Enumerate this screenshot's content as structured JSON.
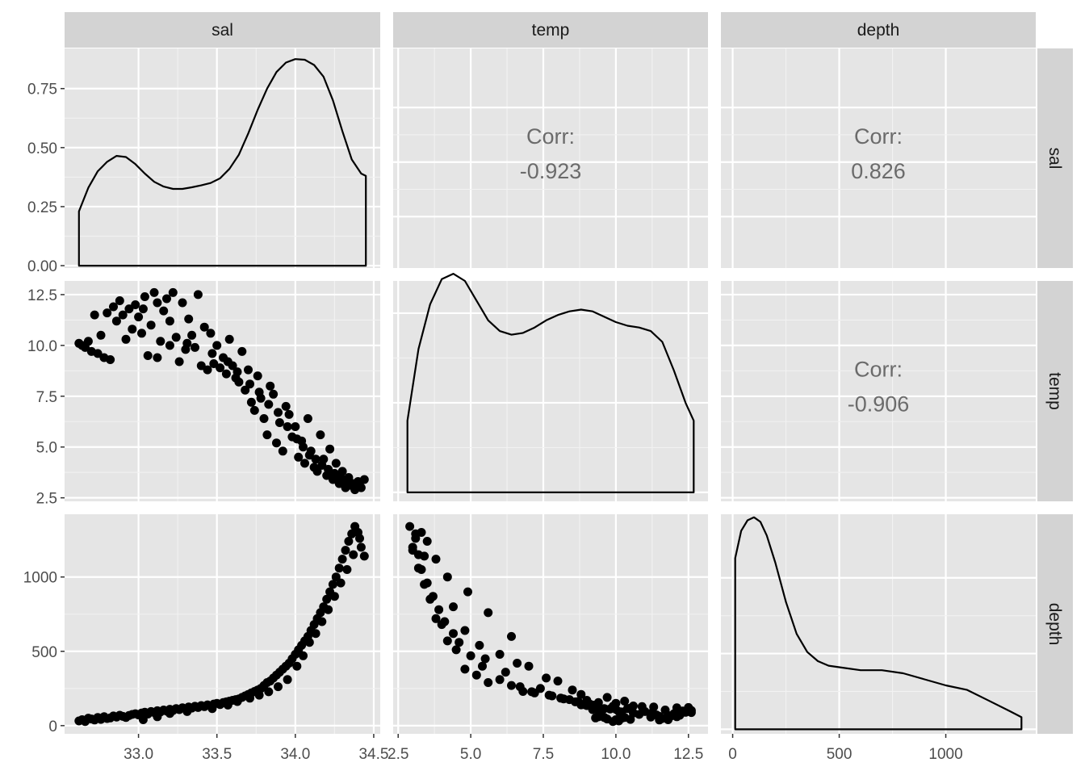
{
  "chart_data": {
    "type": "scatter",
    "variables": [
      "sal",
      "temp",
      "depth"
    ],
    "ranges": {
      "sal": [
        32.62,
        34.45
      ],
      "temp": [
        2.82,
        12.68
      ],
      "depth": [
        12,
        1355
      ]
    },
    "ticks": {
      "sal_y": [
        {
          "v": 0.0,
          "label": "0.00"
        },
        {
          "v": 0.25,
          "label": "0.25"
        },
        {
          "v": 0.5,
          "label": "0.50"
        },
        {
          "v": 0.75,
          "label": "0.75"
        }
      ],
      "temp_y": [
        {
          "v": 2.5,
          "label": "2.5"
        },
        {
          "v": 5.0,
          "label": "5.0"
        },
        {
          "v": 7.5,
          "label": "7.5"
        },
        {
          "v": 10.0,
          "label": "10.0"
        },
        {
          "v": 12.5,
          "label": "12.5"
        }
      ],
      "depth_y": [
        {
          "v": 0,
          "label": "0"
        },
        {
          "v": 500,
          "label": "500"
        },
        {
          "v": 1000,
          "label": "1000"
        }
      ],
      "sal_x": [
        {
          "v": 33.0,
          "label": "33.0"
        },
        {
          "v": 33.5,
          "label": "33.5"
        },
        {
          "v": 34.0,
          "label": "34.0"
        },
        {
          "v": 34.5,
          "label": "34.5"
        }
      ],
      "temp_x": [
        {
          "v": 2.5,
          "label": "2.5"
        },
        {
          "v": 5.0,
          "label": "5.0"
        },
        {
          "v": 7.5,
          "label": "7.5"
        },
        {
          "v": 10.0,
          "label": "10.0"
        },
        {
          "v": 12.5,
          "label": "12.5"
        }
      ],
      "depth_x": [
        {
          "v": 0,
          "label": "0"
        },
        {
          "v": 500,
          "label": "500"
        },
        {
          "v": 1000,
          "label": "1000"
        }
      ]
    },
    "correlations": {
      "corr_label": "Corr:",
      "sal_temp": "-0.923",
      "sal_depth": "0.826",
      "temp_depth": "-0.906"
    },
    "density_sal": {
      "ylim": [
        -0.01,
        0.92
      ],
      "x": [
        32.62,
        32.68,
        32.74,
        32.8,
        32.86,
        32.92,
        32.98,
        33.04,
        33.1,
        33.16,
        33.22,
        33.28,
        33.34,
        33.4,
        33.46,
        33.52,
        33.58,
        33.64,
        33.7,
        33.76,
        33.82,
        33.88,
        33.94,
        34.0,
        34.06,
        34.12,
        34.18,
        34.24,
        34.3,
        34.36,
        34.42,
        34.45
      ],
      "y": [
        0.23,
        0.33,
        0.4,
        0.44,
        0.465,
        0.46,
        0.43,
        0.39,
        0.355,
        0.335,
        0.325,
        0.325,
        0.332,
        0.34,
        0.35,
        0.37,
        0.41,
        0.47,
        0.56,
        0.66,
        0.75,
        0.82,
        0.86,
        0.875,
        0.872,
        0.85,
        0.8,
        0.7,
        0.57,
        0.45,
        0.39,
        0.38
      ]
    },
    "density_temp": {
      "ylim": [
        -0.005,
        0.118
      ],
      "x": [
        2.82,
        3.2,
        3.6,
        4.0,
        4.4,
        4.8,
        5.2,
        5.6,
        6.0,
        6.4,
        6.8,
        7.2,
        7.6,
        8.0,
        8.4,
        8.8,
        9.2,
        9.6,
        10.0,
        10.4,
        10.8,
        11.2,
        11.6,
        12.0,
        12.4,
        12.68
      ],
      "y": [
        0.04,
        0.08,
        0.105,
        0.119,
        0.122,
        0.118,
        0.107,
        0.096,
        0.09,
        0.088,
        0.089,
        0.092,
        0.096,
        0.099,
        0.101,
        0.102,
        0.101,
        0.098,
        0.095,
        0.093,
        0.092,
        0.09,
        0.084,
        0.068,
        0.05,
        0.04
      ]
    },
    "density_depth": {
      "ylim": [
        -3e-05,
        0.00142
      ],
      "x": [
        12,
        40,
        70,
        100,
        130,
        160,
        200,
        250,
        300,
        350,
        400,
        450,
        500,
        600,
        700,
        800,
        900,
        1000,
        1100,
        1200,
        1300,
        1355
      ],
      "y": [
        0.00113,
        0.00131,
        0.00138,
        0.0014,
        0.00137,
        0.00128,
        0.0011,
        0.00084,
        0.00063,
        0.00051,
        0.00045,
        0.00042,
        0.00041,
        0.00039,
        0.00039,
        0.00037,
        0.00033,
        0.00029,
        0.00026,
        0.00019,
        0.00012,
        8e-05
      ]
    },
    "points": [
      [
        32.62,
        10.1,
        32
      ],
      [
        32.64,
        10.0,
        40
      ],
      [
        32.66,
        9.9,
        28
      ],
      [
        32.68,
        10.2,
        50
      ],
      [
        32.7,
        9.7,
        45
      ],
      [
        32.72,
        11.5,
        38
      ],
      [
        32.74,
        9.6,
        55
      ],
      [
        32.76,
        10.5,
        42
      ],
      [
        32.78,
        9.4,
        60
      ],
      [
        32.8,
        11.6,
        48
      ],
      [
        32.82,
        9.3,
        52
      ],
      [
        32.84,
        11.9,
        65
      ],
      [
        32.86,
        11.2,
        58
      ],
      [
        32.88,
        12.2,
        70
      ],
      [
        32.9,
        11.5,
        62
      ],
      [
        32.92,
        10.3,
        55
      ],
      [
        32.94,
        11.8,
        68
      ],
      [
        32.96,
        10.8,
        75
      ],
      [
        32.98,
        12.0,
        80
      ],
      [
        33.0,
        11.4,
        72
      ],
      [
        33.02,
        10.6,
        85
      ],
      [
        33.04,
        12.4,
        90
      ],
      [
        33.06,
        9.5,
        78
      ],
      [
        33.08,
        11.0,
        95
      ],
      [
        33.1,
        12.6,
        88
      ],
      [
        33.12,
        9.4,
        100
      ],
      [
        33.14,
        10.2,
        92
      ],
      [
        33.16,
        11.7,
        105
      ],
      [
        33.18,
        12.3,
        98
      ],
      [
        33.2,
        10.0,
        110
      ],
      [
        33.22,
        12.6,
        102
      ],
      [
        33.24,
        10.4,
        115
      ],
      [
        33.26,
        9.2,
        108
      ],
      [
        33.28,
        12.1,
        120
      ],
      [
        33.3,
        9.8,
        112
      ],
      [
        33.32,
        11.3,
        125
      ],
      [
        33.34,
        10.5,
        118
      ],
      [
        33.36,
        9.9,
        130
      ],
      [
        33.38,
        12.5,
        122
      ],
      [
        33.4,
        9.0,
        135
      ],
      [
        33.42,
        10.9,
        128
      ],
      [
        33.44,
        8.8,
        140
      ],
      [
        33.46,
        10.6,
        132
      ],
      [
        33.48,
        9.1,
        145
      ],
      [
        33.5,
        10.0,
        150
      ],
      [
        33.52,
        8.9,
        142
      ],
      [
        33.54,
        9.4,
        155
      ],
      [
        33.56,
        8.6,
        160
      ],
      [
        33.58,
        10.3,
        165
      ],
      [
        33.6,
        9.0,
        170
      ],
      [
        33.62,
        8.4,
        175
      ],
      [
        33.64,
        8.2,
        180
      ],
      [
        33.66,
        9.7,
        190
      ],
      [
        33.68,
        7.8,
        200
      ],
      [
        33.7,
        8.8,
        210
      ],
      [
        33.72,
        7.2,
        220
      ],
      [
        33.74,
        6.8,
        230
      ],
      [
        33.76,
        8.5,
        240
      ],
      [
        33.78,
        7.4,
        250
      ],
      [
        33.8,
        6.4,
        270
      ],
      [
        33.82,
        5.6,
        290
      ],
      [
        33.84,
        8.0,
        300
      ],
      [
        33.86,
        7.6,
        320
      ],
      [
        33.88,
        5.2,
        340
      ],
      [
        33.9,
        6.2,
        360
      ],
      [
        33.92,
        4.8,
        380
      ],
      [
        33.94,
        7.0,
        400
      ],
      [
        33.96,
        6.6,
        420
      ],
      [
        33.98,
        5.5,
        450
      ],
      [
        34.0,
        6.0,
        480
      ],
      [
        34.02,
        4.5,
        510
      ],
      [
        34.04,
        5.3,
        540
      ],
      [
        34.06,
        4.2,
        570
      ],
      [
        34.08,
        6.4,
        600
      ],
      [
        34.1,
        4.8,
        640
      ],
      [
        34.12,
        4.0,
        680
      ],
      [
        34.14,
        3.8,
        720
      ],
      [
        34.16,
        5.6,
        760
      ],
      [
        34.18,
        4.4,
        800
      ],
      [
        34.2,
        3.6,
        850
      ],
      [
        34.22,
        4.9,
        900
      ],
      [
        34.24,
        3.4,
        950
      ],
      [
        34.26,
        4.2,
        1000
      ],
      [
        34.28,
        3.2,
        1060
      ],
      [
        34.3,
        3.8,
        1120
      ],
      [
        34.32,
        3.0,
        1180
      ],
      [
        34.34,
        3.5,
        1240
      ],
      [
        34.36,
        3.1,
        1290
      ],
      [
        34.38,
        2.9,
        1340
      ],
      [
        34.4,
        3.3,
        1300
      ],
      [
        34.42,
        3.0,
        1200
      ],
      [
        34.44,
        3.4,
        1140
      ],
      [
        33.03,
        11.8,
        40
      ],
      [
        33.12,
        12.1,
        60
      ],
      [
        33.2,
        11.2,
        82
      ],
      [
        33.31,
        10.1,
        95
      ],
      [
        33.47,
        9.6,
        115
      ],
      [
        33.57,
        9.2,
        138
      ],
      [
        33.63,
        8.7,
        162
      ],
      [
        33.71,
        8.1,
        185
      ],
      [
        33.77,
        7.7,
        205
      ],
      [
        33.83,
        7.1,
        228
      ],
      [
        33.89,
        6.7,
        262
      ],
      [
        33.95,
        6.0,
        310
      ],
      [
        34.01,
        5.4,
        400
      ],
      [
        34.05,
        5.0,
        470
      ],
      [
        34.09,
        4.6,
        560
      ],
      [
        34.13,
        4.4,
        620
      ],
      [
        34.17,
        4.1,
        700
      ],
      [
        34.21,
        3.9,
        780
      ],
      [
        34.25,
        3.7,
        870
      ],
      [
        34.29,
        3.5,
        960
      ],
      [
        34.33,
        3.3,
        1050
      ],
      [
        34.37,
        3.2,
        1150
      ],
      [
        34.41,
        3.1,
        1260
      ]
    ]
  }
}
